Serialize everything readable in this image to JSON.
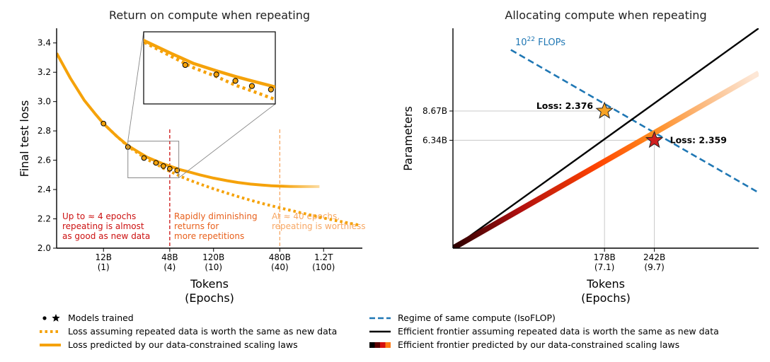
{
  "chart_data": [
    {
      "type": "line",
      "title": "Return on compute when repeating",
      "xlabel": "Tokens",
      "xlabel2": "(Epochs)",
      "ylabel": "Final test loss",
      "x_scale": "log",
      "xlim_tokens_B": [
        4.5,
        2700
      ],
      "ylim": [
        2.0,
        3.5
      ],
      "y_ticks": [
        2.0,
        2.2,
        2.4,
        2.6,
        2.8,
        3.0,
        3.2,
        3.4
      ],
      "y_tick_labels": [
        "2.0",
        "2.2",
        "2.4",
        "2.6",
        "2.8",
        "3.0",
        "3.2",
        "3.4"
      ],
      "x_ticks_B": [
        12,
        48,
        120,
        480,
        1200
      ],
      "x_tick_labels": [
        "12B",
        "48B",
        "120B",
        "480B",
        "1.2T"
      ],
      "x_tick_epoch_labels": [
        "(1)",
        "(4)",
        "(10)",
        "(40)",
        "(100)"
      ],
      "series": [
        {
          "name": "Loss predicted by our data-constrained scaling laws",
          "style": "solid",
          "color": "#f5a20a",
          "x_B": [
            4.5,
            6,
            8,
            10,
            12,
            16,
            20,
            25,
            30,
            36,
            42,
            48,
            60,
            72,
            90,
            120,
            160,
            200,
            260,
            330,
            400,
            480,
            600,
            750,
            900,
            1100
          ],
          "y": [
            3.33,
            3.16,
            3.01,
            2.92,
            2.85,
            2.76,
            2.7,
            2.655,
            2.62,
            2.595,
            2.575,
            2.56,
            2.535,
            2.52,
            2.5,
            2.478,
            2.46,
            2.448,
            2.437,
            2.43,
            2.426,
            2.423,
            2.421,
            2.42,
            2.42,
            2.42
          ]
        },
        {
          "name": "Loss assuming repeated data is worth the same as new data",
          "style": "dotted",
          "color": "#f5a20a",
          "x_B": [
            12,
            16,
            20,
            25,
            30,
            36,
            42,
            48,
            60,
            72,
            90,
            120,
            160,
            200,
            260,
            330,
            400,
            480,
            600,
            750,
            900,
            1100,
            1300,
            1600,
            2000,
            2500
          ],
          "y": [
            2.85,
            2.76,
            2.695,
            2.645,
            2.605,
            2.575,
            2.545,
            2.525,
            2.49,
            2.465,
            2.438,
            2.405,
            2.375,
            2.352,
            2.327,
            2.306,
            2.29,
            2.275,
            2.258,
            2.241,
            2.227,
            2.212,
            2.2,
            2.186,
            2.172,
            2.158
          ]
        }
      ],
      "models_trained": {
        "x_B": [
          12,
          20,
          28,
          36,
          42,
          48,
          56
        ],
        "y": [
          2.85,
          2.69,
          2.615,
          2.582,
          2.56,
          2.542,
          2.53
        ]
      },
      "inset": {
        "zoom_x_B": [
          20,
          58
        ],
        "zoom_y": [
          2.48,
          2.73
        ]
      },
      "vlines": [
        {
          "x_B": 48,
          "color": "#cc1111"
        },
        {
          "x_B": 480,
          "color": "#f7a865"
        }
      ],
      "annotations": [
        {
          "lines": [
            "Up to ≈ 4 epochs",
            "repeating is almost",
            "as good as new data"
          ],
          "color": "#cc1111"
        },
        {
          "lines": [
            "Rapidly diminishing",
            "returns for",
            "more repetitions"
          ],
          "color": "#e8601c"
        },
        {
          "lines": [
            "At ≈ 40 epochs,",
            "repeating is worthless"
          ],
          "color": "#f7a865"
        }
      ]
    },
    {
      "type": "line",
      "title": "Allocating compute when repeating",
      "xlabel": "Tokens",
      "xlabel2": "(Epochs)",
      "ylabel": "Parameters",
      "x_scale": "log",
      "y_scale": "log",
      "xlim_tokens_B": [
        70,
        460
      ],
      "ylim_params_B": [
        2.0,
        21.0
      ],
      "x_ticks_B": [
        178,
        242
      ],
      "x_tick_labels": [
        "178B",
        "242B"
      ],
      "x_tick_epoch_labels": [
        "(7.1)",
        "(9.7)"
      ],
      "y_ticks_B": [
        6.34,
        8.67
      ],
      "y_tick_labels": [
        "6.34B",
        "8.67B"
      ],
      "isoflop_label_base": "10",
      "isoflop_label_exp": "22",
      "isoflop_label_unit": " FLOPs",
      "series": [
        {
          "name": "Regime of same compute (IsoFLOP)",
          "style": "dashed",
          "color": "#1f77b4",
          "x_B": [
            100,
            460
          ],
          "y_B": [
            16.67,
            3.62
          ]
        },
        {
          "name": "Efficient frontier assuming repeated data is worth the same as new data",
          "style": "solid",
          "color": "#000000",
          "x_B": [
            70,
            460
          ],
          "y_B": [
            2.0,
            21.0
          ]
        },
        {
          "name": "Efficient frontier predicted by our data-constrained scaling laws",
          "style": "gradient",
          "color": "#ff5500",
          "x_B": [
            70,
            460
          ],
          "y_B": [
            2.0,
            13.0
          ]
        }
      ],
      "points": [
        {
          "label": "Loss: 2.376",
          "x_B": 178,
          "y_B": 8.67,
          "color": "#f7a325"
        },
        {
          "label": "Loss: 2.359",
          "x_B": 242,
          "y_B": 6.34,
          "color": "#d11f1f"
        }
      ]
    }
  ],
  "legend_left": [
    {
      "marker": "dots-star",
      "label": "Models trained"
    },
    {
      "marker": "dotted",
      "label": "Loss assuming repeated data is worth the same as new data"
    },
    {
      "marker": "solid",
      "label": "Loss predicted by our data-constrained scaling laws"
    }
  ],
  "legend_right": [
    {
      "marker": "dashed",
      "label": "Regime of same compute (IsoFLOP)"
    },
    {
      "marker": "black",
      "label": "Efficient frontier assuming repeated data is worth the same as new data"
    },
    {
      "marker": "gradient",
      "label": "Efficient frontier predicted by our data-constrained scaling laws"
    }
  ]
}
